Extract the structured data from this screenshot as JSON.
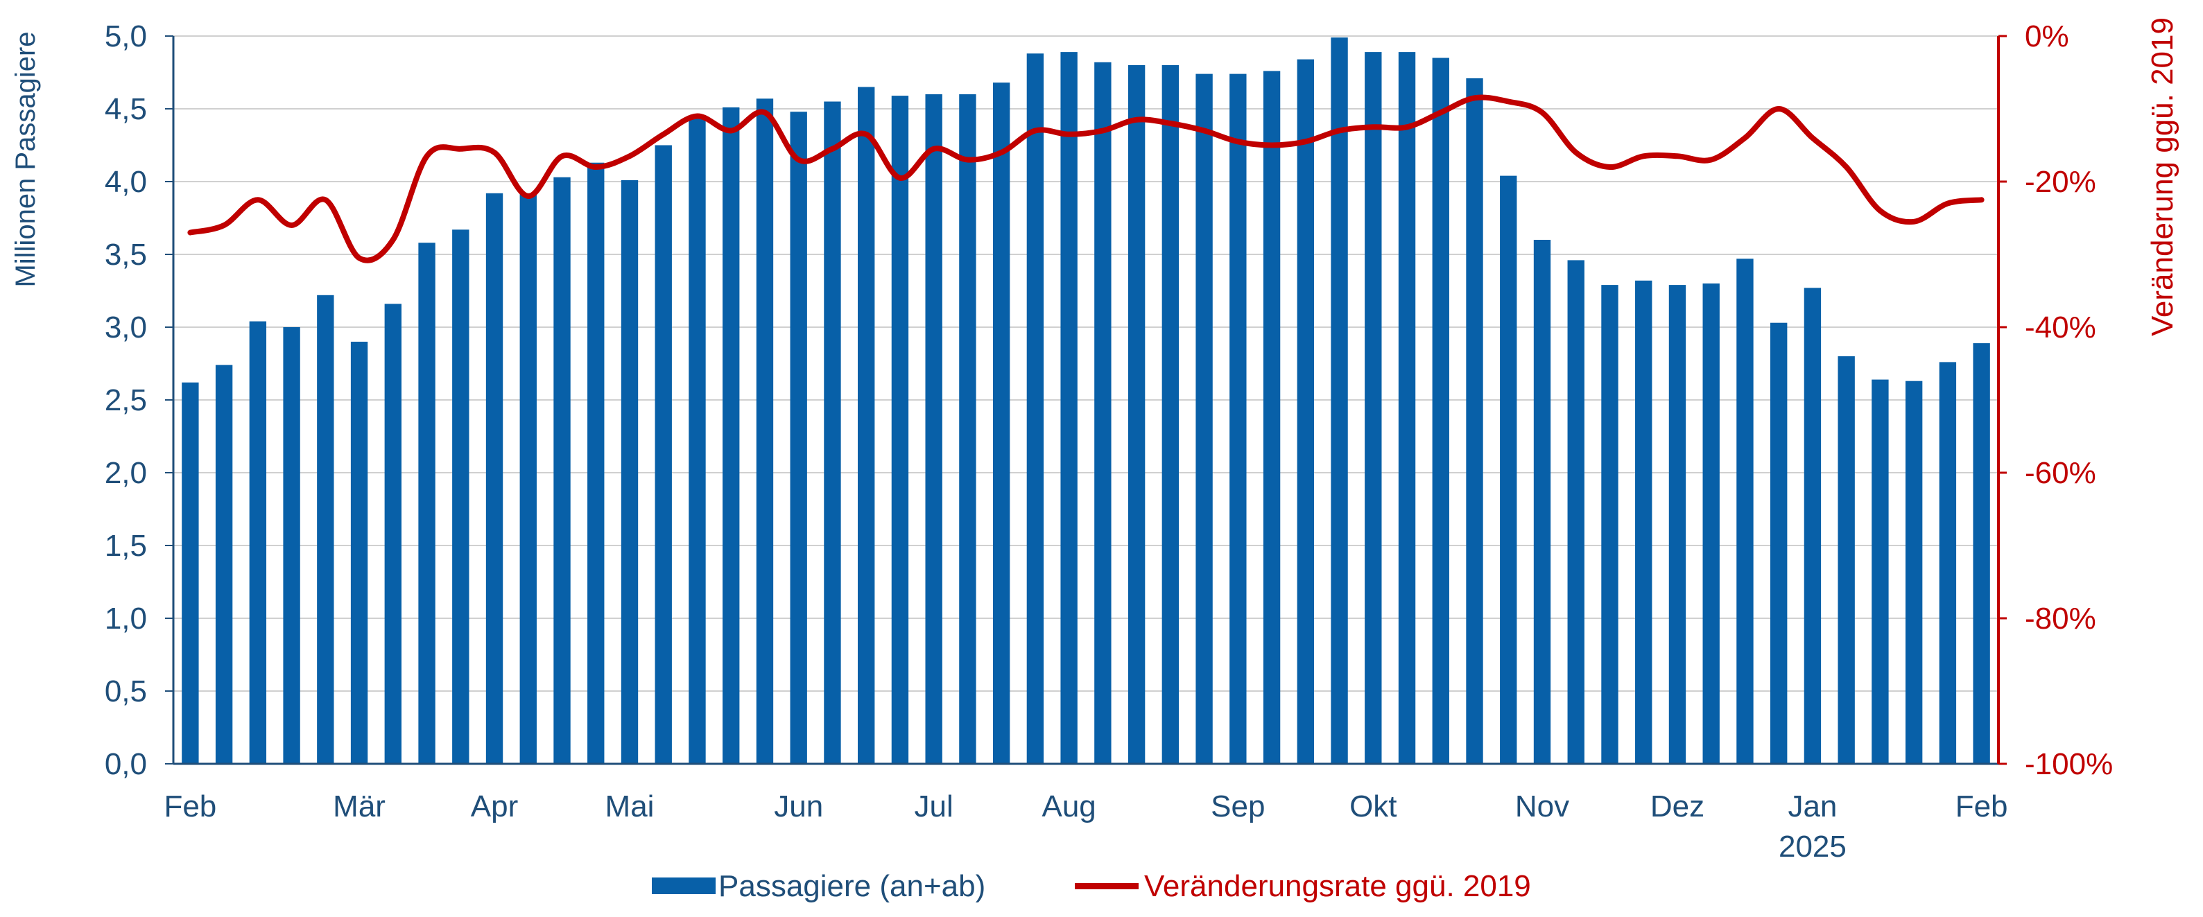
{
  "chart_data": {
    "type": "bar",
    "left_axis": {
      "title": "Millionen Passagiere",
      "ylim": [
        0,
        5
      ],
      "ticks": [
        0,
        0.5,
        1,
        1.5,
        2,
        2.5,
        3,
        3.5,
        4,
        4.5,
        5
      ],
      "tick_labels": [
        "0,0",
        "0,5",
        "1,0",
        "1,5",
        "2,0",
        "2,5",
        "3,0",
        "3,5",
        "4,0",
        "4,5",
        "5,0"
      ]
    },
    "right_axis": {
      "title": "Veränderung ggü. 2019",
      "ylim": [
        -100,
        0
      ],
      "ticks": [
        -100,
        -80,
        -60,
        -40,
        -20,
        0
      ],
      "tick_labels": [
        "-100%",
        "-80%",
        "-60%",
        "-40%",
        "-20%",
        "0%"
      ]
    },
    "x_axis": {
      "month_labels": [
        {
          "label": "Feb",
          "at": 0
        },
        {
          "label": "Mär",
          "at": 5
        },
        {
          "label": "Apr",
          "at": 9
        },
        {
          "label": "Mai",
          "at": 13
        },
        {
          "label": "Jun",
          "at": 18
        },
        {
          "label": "Jul",
          "at": 22
        },
        {
          "label": "Aug",
          "at": 26
        },
        {
          "label": "Sep",
          "at": 31
        },
        {
          "label": "Okt",
          "at": 35
        },
        {
          "label": "Nov",
          "at": 40
        },
        {
          "label": "Dez",
          "at": 44
        },
        {
          "label": "Jan",
          "at": 48
        },
        {
          "label": "Feb",
          "at": 53
        }
      ],
      "year_label": {
        "label": "2025",
        "at": 48
      }
    },
    "grid": true,
    "legend_position": "bottom",
    "series": [
      {
        "name": "Passagiere (an+ab)",
        "type": "bar",
        "axis": "left",
        "color": "#0860A8",
        "values": [
          2.62,
          2.74,
          3.04,
          3.0,
          3.22,
          2.9,
          3.16,
          3.58,
          3.67,
          3.92,
          3.92,
          4.03,
          4.13,
          4.01,
          4.25,
          4.44,
          4.51,
          4.57,
          4.48,
          4.55,
          4.65,
          4.59,
          4.6,
          4.6,
          4.68,
          4.88,
          4.89,
          4.82,
          4.8,
          4.8,
          4.74,
          4.74,
          4.76,
          4.84,
          4.99,
          4.89,
          4.89,
          4.85,
          4.71,
          4.04,
          3.6,
          3.46,
          3.29,
          3.32,
          3.29,
          3.3,
          3.47,
          3.03,
          3.27,
          2.8,
          2.64,
          2.63,
          2.76,
          2.89
        ]
      },
      {
        "name": "Veränderungsrate ggü. 2019",
        "type": "line",
        "axis": "right",
        "color": "#C00000",
        "values": [
          -27,
          -26,
          -22.5,
          -26,
          -22.5,
          -30.5,
          -28,
          -16.5,
          -15.5,
          -16,
          -22,
          -16.5,
          -18,
          -16.5,
          -13.5,
          -11,
          -13,
          -10.5,
          -17,
          -15.5,
          -13.5,
          -19.5,
          -15.5,
          -17,
          -16,
          -13,
          -13.5,
          -13,
          -11.5,
          -12,
          -13,
          -14.5,
          -15,
          -14.5,
          -13,
          -12.5,
          -12.5,
          -10.5,
          -8.5,
          -9,
          -10.5,
          -16,
          -18,
          -16.5,
          -16.5,
          -17,
          -14,
          -10,
          -14,
          -18,
          -24,
          -25.5,
          -23,
          -22.5
        ]
      }
    ]
  }
}
